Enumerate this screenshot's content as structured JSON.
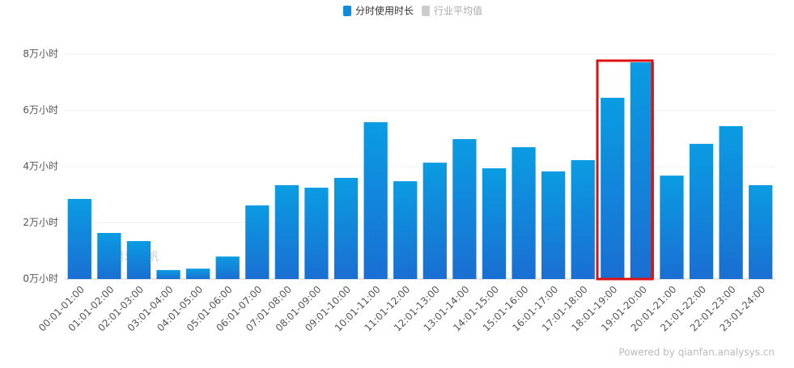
{
  "chart_data": {
    "type": "bar",
    "categories": [
      "00:01-01:00",
      "01:01-02:00",
      "02:01-03:00",
      "03:01-04:00",
      "04:01-05:00",
      "05:01-06:00",
      "06:01-07:00",
      "07:01-08:00",
      "08:01-09:00",
      "09:01-10:00",
      "10:01-11:00",
      "11:01-12:00",
      "12:01-13:00",
      "13:01-14:00",
      "14:01-15:00",
      "15:01-16:00",
      "16:01-17:00",
      "17:01-18:00",
      "18:01-19:00",
      "19:01-20:00",
      "20:01-21:00",
      "21:01-22:00",
      "22:01-23:00",
      "23:01-24:00"
    ],
    "series": [
      {
        "name": "分时使用时长",
        "color": "#0b8ddc",
        "values": [
          2.85,
          1.64,
          1.35,
          0.32,
          0.37,
          0.8,
          2.62,
          3.34,
          3.25,
          3.6,
          5.58,
          3.48,
          4.14,
          4.98,
          3.94,
          4.69,
          3.83,
          4.23,
          6.45,
          7.71,
          3.68,
          4.81,
          5.44,
          3.34
        ]
      },
      {
        "name": "行业平均值",
        "color": "#cccccc",
        "values": [
          null,
          null,
          null,
          null,
          null,
          null,
          null,
          null,
          null,
          null,
          null,
          null,
          null,
          null,
          null,
          null,
          null,
          null,
          null,
          null,
          null,
          null,
          null,
          null
        ]
      }
    ],
    "ylim": [
      0,
      8
    ],
    "yticks": [
      {
        "value": 0,
        "label": "0万小时"
      },
      {
        "value": 2,
        "label": "2万小时"
      },
      {
        "value": 4,
        "label": "4万小时"
      },
      {
        "value": 6,
        "label": "6万小时"
      },
      {
        "value": 8,
        "label": "8万小时"
      }
    ],
    "grid": true,
    "legend": "top",
    "annotations": [
      "易观千帆",
      "Powered by qianfan.analysys.cn"
    ]
  }
}
